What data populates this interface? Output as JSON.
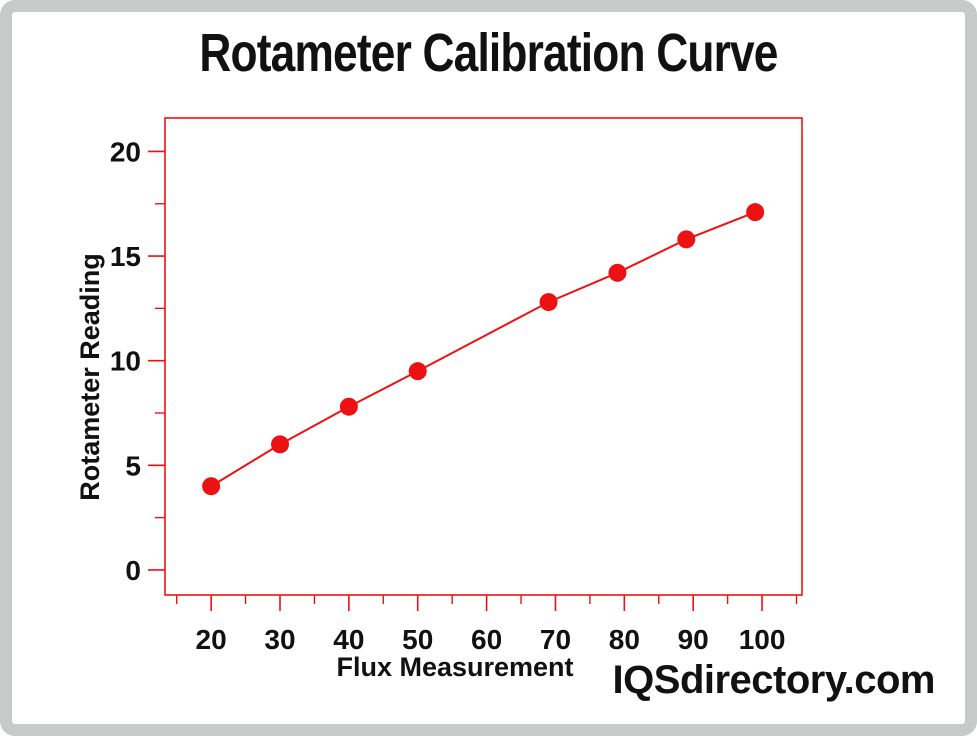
{
  "page": {
    "border_color": "#c6cac9",
    "background_color": "#ffffff",
    "watermark": "IQSdirectory.com"
  },
  "chart_data": {
    "type": "scatter",
    "title": "Rotameter Calibration Curve",
    "xlabel": "Flux Measurement",
    "ylabel": "Rotameter Reading",
    "x": [
      20,
      30,
      40,
      50,
      69,
      79,
      89,
      99
    ],
    "y": [
      4.0,
      6.0,
      7.8,
      9.5,
      12.8,
      14.2,
      15.8,
      17.1
    ],
    "xlim": [
      13.3,
      105.8
    ],
    "ylim": [
      -1.2,
      21.6
    ],
    "x_major_ticks": [
      20,
      30,
      40,
      50,
      60,
      70,
      80,
      90,
      100
    ],
    "x_minor_ticks": [
      15,
      25,
      35,
      45,
      55,
      65,
      75,
      85,
      95,
      105
    ],
    "y_major_ticks": [
      0,
      5,
      10,
      15,
      20
    ],
    "y_minor_ticks": [
      2.5,
      7.5,
      12.5,
      17.5
    ],
    "accent_color": "#ee1114",
    "text_color": "#111111",
    "marker_radius": 9,
    "line_width": 2,
    "grid": false,
    "legend": null,
    "marker_connected_by_line": true
  }
}
